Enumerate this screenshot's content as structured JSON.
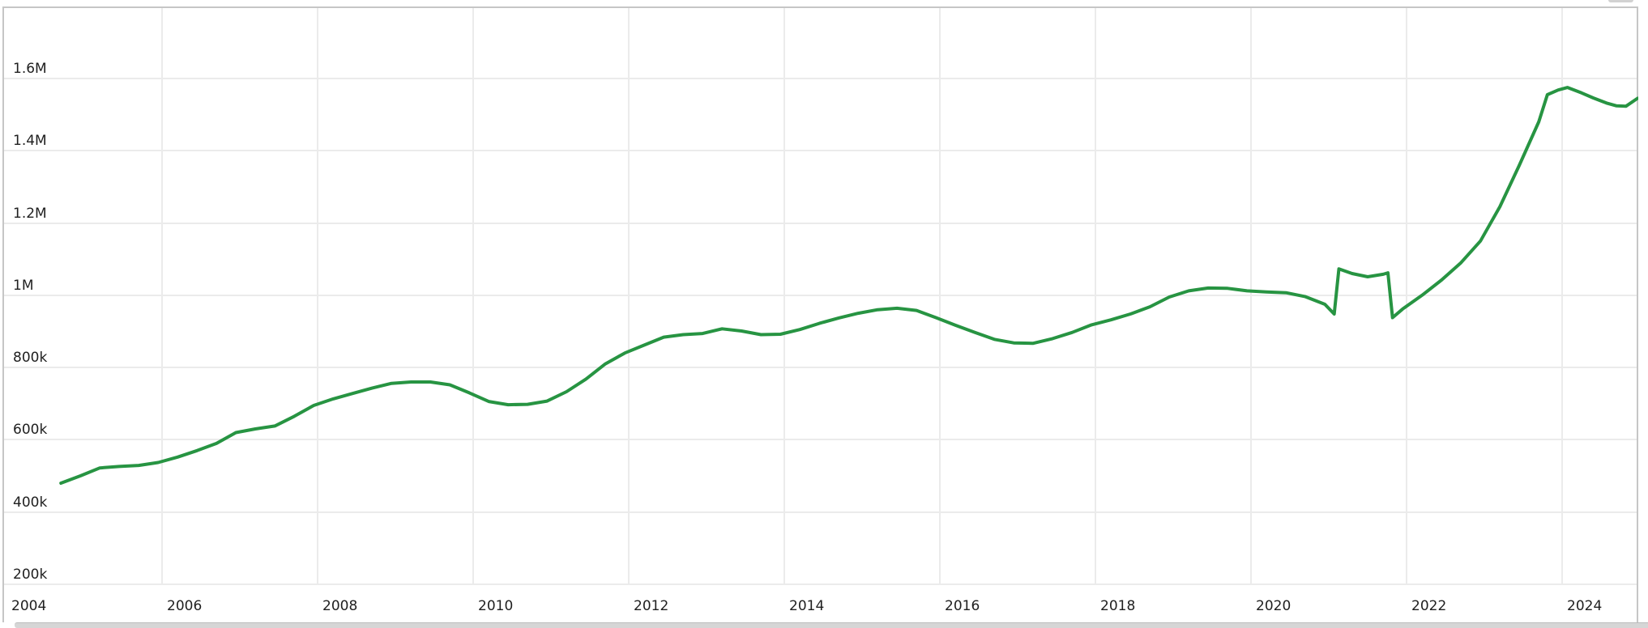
{
  "style": {
    "line_color": "#279442",
    "grid_color": "#ebebeb",
    "border_color": "#c6c6c6",
    "text_color": "#1f1f1f",
    "background": "#ffffff"
  },
  "chart_data": {
    "type": "line",
    "title": "",
    "xlabel": "",
    "ylabel": "",
    "grid": true,
    "legend": false,
    "x_range": [
      2004,
      2024.96
    ],
    "y_range_k": [
      200,
      1795
    ],
    "x_ticks": [
      2004,
      2006,
      2008,
      2010,
      2012,
      2014,
      2016,
      2018,
      2020,
      2022,
      2024
    ],
    "x_tick_labels": [
      "2004",
      "2006",
      "2008",
      "2010",
      "2012",
      "2014",
      "2016",
      "2018",
      "2020",
      "2022",
      "2024"
    ],
    "y_ticks_k": [
      200,
      400,
      600,
      800,
      1000,
      1200,
      1400,
      1600
    ],
    "y_tick_labels": [
      "200k",
      "400k",
      "600k",
      "800k",
      "1M",
      "1.2M",
      "1.4M",
      "1.6M"
    ],
    "series": [
      {
        "name": "series-1",
        "color": "#279442",
        "x": [
          2004.7,
          2004.95,
          2005.2,
          2005.45,
          2005.7,
          2005.95,
          2006.2,
          2006.45,
          2006.7,
          2006.95,
          2007.2,
          2007.45,
          2007.7,
          2007.95,
          2008.2,
          2008.45,
          2008.7,
          2008.95,
          2009.2,
          2009.45,
          2009.7,
          2009.95,
          2010.2,
          2010.45,
          2010.7,
          2010.95,
          2011.2,
          2011.45,
          2011.7,
          2011.95,
          2012.2,
          2012.45,
          2012.7,
          2012.95,
          2013.2,
          2013.45,
          2013.7,
          2013.95,
          2014.2,
          2014.45,
          2014.7,
          2014.95,
          2015.2,
          2015.45,
          2015.7,
          2015.95,
          2016.2,
          2016.45,
          2016.7,
          2016.95,
          2017.2,
          2017.45,
          2017.7,
          2017.95,
          2018.2,
          2018.45,
          2018.7,
          2018.95,
          2019.2,
          2019.45,
          2019.7,
          2019.95,
          2020.2,
          2020.45,
          2020.7,
          2020.95,
          2021.07,
          2021.13,
          2021.3,
          2021.5,
          2021.7,
          2021.76,
          2021.82,
          2021.95,
          2022.2,
          2022.45,
          2022.7,
          2022.95,
          2023.2,
          2023.45,
          2023.7,
          2023.81,
          2023.95,
          2024.07,
          2024.25,
          2024.4,
          2024.57,
          2024.7,
          2024.82,
          2024.97
        ],
        "values_k": [
          480,
          500,
          522,
          526,
          529,
          537,
          552,
          570,
          590,
          620,
          630,
          638,
          665,
          695,
          713,
          728,
          743,
          756,
          760,
          760,
          752,
          730,
          706,
          697,
          698,
          707,
          733,
          768,
          810,
          840,
          862,
          884,
          891,
          894,
          907,
          901,
          891,
          892,
          905,
          922,
          937,
          950,
          960,
          964,
          958,
          938,
          917,
          897,
          878,
          868,
          867,
          880,
          897,
          918,
          932,
          948,
          968,
          995,
          1012,
          1020,
          1019,
          1012,
          1009,
          1007,
          996,
          975,
          948,
          1073,
          1060,
          1051,
          1058,
          1062,
          938,
          962,
          1000,
          1042,
          1090,
          1150,
          1245,
          1360,
          1480,
          1555,
          1568,
          1575,
          1560,
          1546,
          1532,
          1524,
          1523,
          1545
        ]
      }
    ]
  }
}
